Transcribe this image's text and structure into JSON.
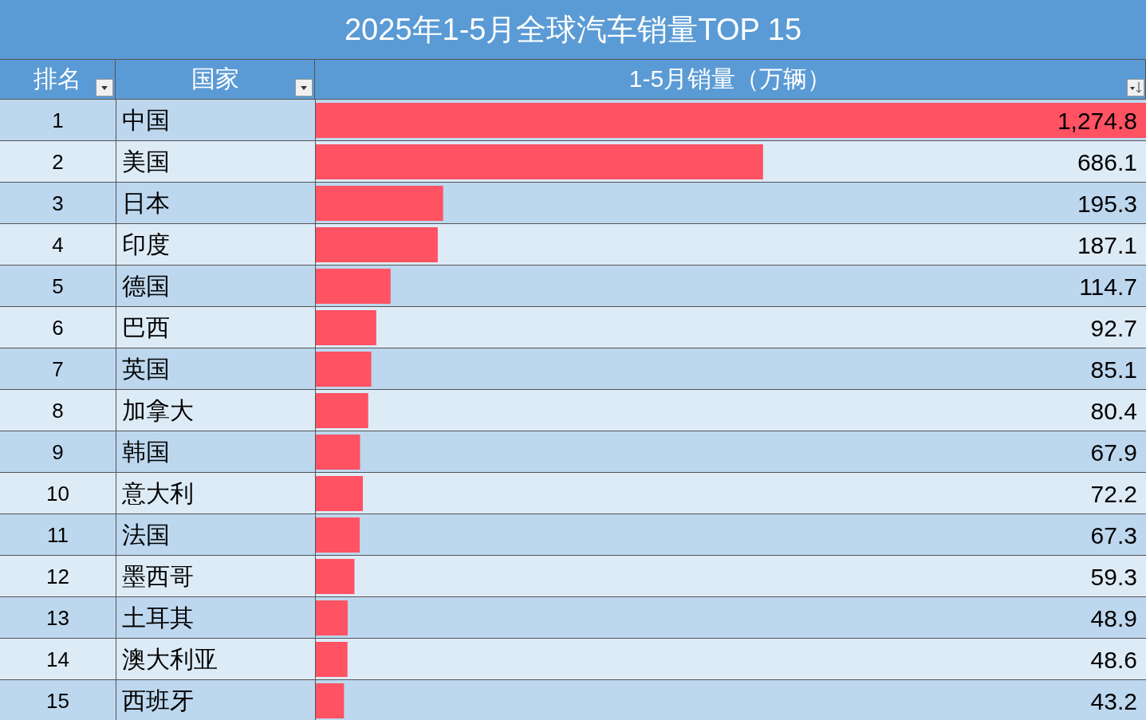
{
  "chart_data": {
    "type": "bar",
    "orientation": "horizontal",
    "title": "2025年1-5月全球汽车销量TOP 15",
    "categories": [
      "中国",
      "美国",
      "日本",
      "印度",
      "德国",
      "巴西",
      "英国",
      "加拿大",
      "韩国",
      "意大利",
      "法国",
      "墨西哥",
      "土耳其",
      "澳大利亚",
      "西班牙"
    ],
    "values": [
      1274.8,
      686.1,
      195.3,
      187.1,
      114.7,
      92.7,
      85.1,
      80.4,
      67.9,
      72.2,
      67.3,
      59.3,
      48.9,
      48.6,
      43.2
    ],
    "color": "#ff5262",
    "value_labels": [
      "1,274.8",
      "686.1",
      "195.3",
      "187.1",
      "114.7",
      "92.7",
      "85.1",
      "80.4",
      "67.9",
      "72.2",
      "67.3",
      "59.3",
      "48.9",
      "48.6",
      "43.2"
    ],
    "annotations": [
      "排名",
      "国家",
      "1-5月销量（万辆）",
      "1",
      "2",
      "3",
      "4",
      "5",
      "6",
      "7",
      "8",
      "9",
      "10",
      "11",
      "12",
      "13",
      "14",
      "15"
    ]
  }
}
